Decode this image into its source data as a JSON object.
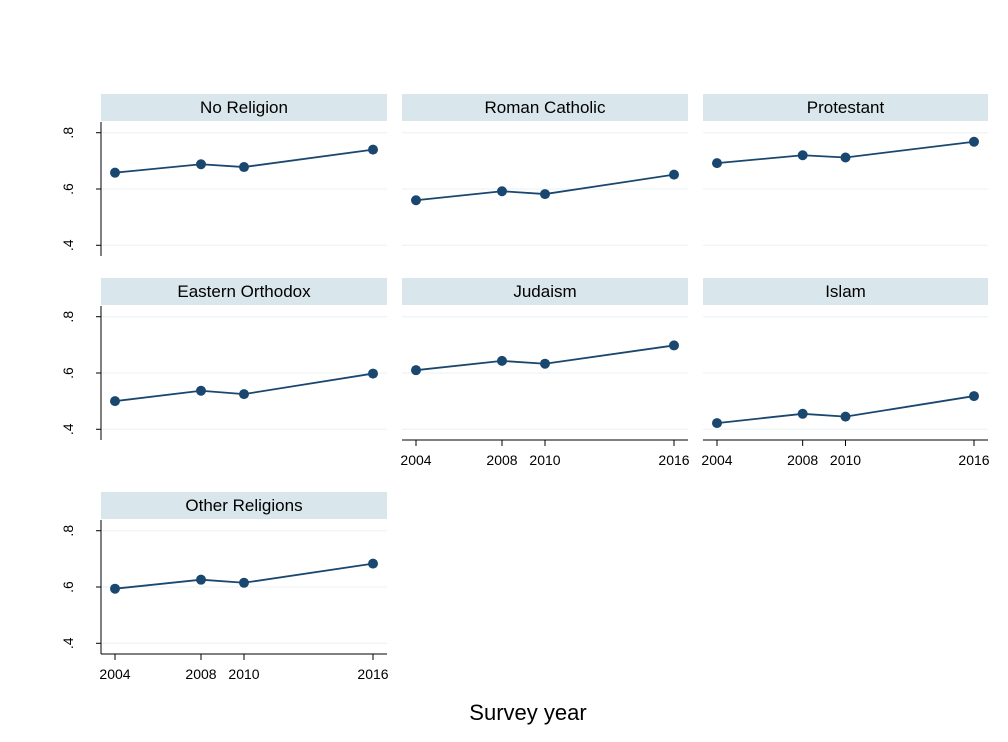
{
  "chart_data": {
    "type": "line",
    "xlabel": "Survey year",
    "x": [
      2004,
      2008,
      2010,
      2016
    ],
    "x_tick_labels": [
      "2004",
      "2008",
      "2010",
      "2016"
    ],
    "ylim": [
      0.4,
      0.8
    ],
    "y_ticks": [
      0.4,
      0.6,
      0.8
    ],
    "y_tick_labels": [
      ".4",
      ".6",
      ".8"
    ],
    "grid": true,
    "marker": "circle",
    "line_color": "#1a476f",
    "panel_title_bg": "#d9e6eb",
    "panels": [
      {
        "title": "No Religion",
        "values": [
          0.658,
          0.688,
          0.678,
          0.74
        ]
      },
      {
        "title": "Roman Catholic",
        "values": [
          0.56,
          0.592,
          0.582,
          0.651
        ]
      },
      {
        "title": "Protestant",
        "values": [
          0.692,
          0.72,
          0.712,
          0.768
        ]
      },
      {
        "title": "Eastern Orthodox",
        "values": [
          0.5,
          0.537,
          0.525,
          0.598
        ]
      },
      {
        "title": "Judaism",
        "values": [
          0.61,
          0.643,
          0.633,
          0.698
        ]
      },
      {
        "title": "Islam",
        "values": [
          0.422,
          0.455,
          0.445,
          0.518
        ]
      },
      {
        "title": "Other Religions",
        "values": [
          0.594,
          0.626,
          0.615,
          0.683
        ]
      }
    ]
  }
}
